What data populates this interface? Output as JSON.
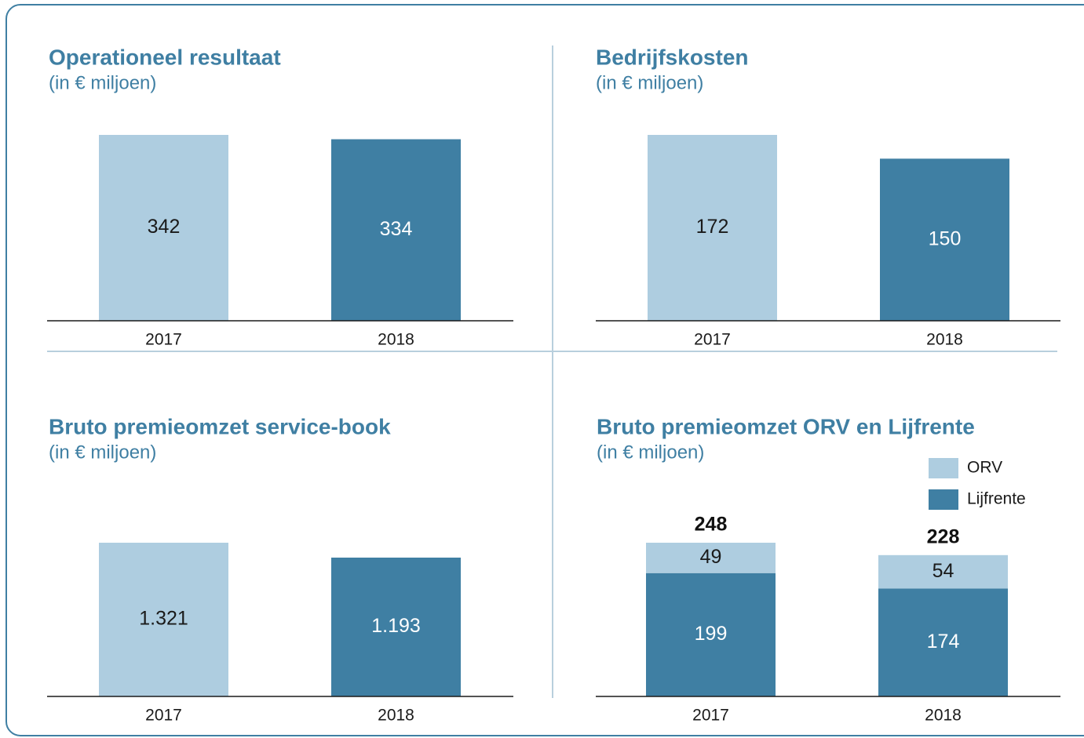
{
  "chart_data": [
    {
      "type": "bar",
      "title": "Operationeel resultaat",
      "subtitle": "(in € miljoen)",
      "categories": [
        "2017",
        "2018"
      ],
      "values": [
        342,
        334
      ],
      "colors": [
        "#aecde0",
        "#3f7fa3"
      ]
    },
    {
      "type": "bar",
      "title": "Bedrijfskosten",
      "subtitle": "(in € miljoen)",
      "categories": [
        "2017",
        "2018"
      ],
      "values": [
        172,
        150
      ],
      "colors": [
        "#aecde0",
        "#3f7fa3"
      ]
    },
    {
      "type": "bar",
      "title": "Bruto premieomzet service-book",
      "subtitle": "(in € miljoen)",
      "categories": [
        "2017",
        "2018"
      ],
      "values": [
        1321,
        1193
      ],
      "value_labels": [
        "1.321",
        "1.193"
      ],
      "colors": [
        "#aecde0",
        "#3f7fa3"
      ]
    },
    {
      "type": "stacked_bar",
      "title": "Bruto premieomzet ORV en Lijfrente",
      "subtitle": "(in € miljoen)",
      "categories": [
        "2017",
        "2018"
      ],
      "series": [
        {
          "name": "ORV",
          "color": "#aecde0",
          "values": [
            49,
            54
          ]
        },
        {
          "name": "Lijfrente",
          "color": "#3f7fa3",
          "values": [
            199,
            174
          ]
        }
      ],
      "totals": [
        248,
        228
      ],
      "legend": "upper right"
    }
  ]
}
